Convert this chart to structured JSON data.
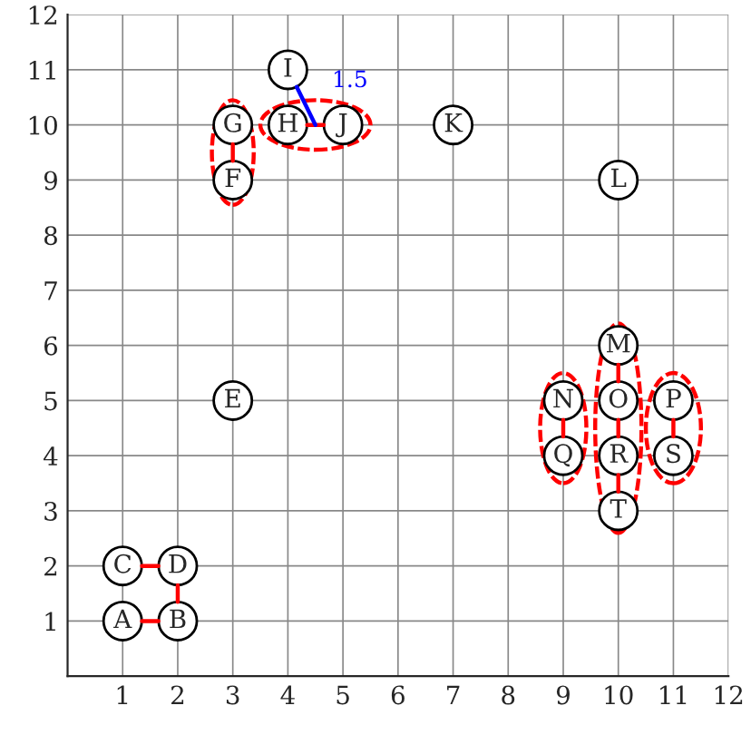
{
  "chart_data": {
    "type": "scatter",
    "xlim": [
      0,
      12
    ],
    "ylim": [
      0,
      12
    ],
    "xticks": [
      1,
      2,
      3,
      4,
      5,
      6,
      7,
      8,
      9,
      10,
      11,
      12
    ],
    "yticks": [
      1,
      2,
      3,
      4,
      5,
      6,
      7,
      8,
      9,
      10,
      11,
      12
    ],
    "grid": true,
    "legend": false,
    "series": [
      {
        "type": "line",
        "color": "#ff0000",
        "line_style": "solid",
        "x": [
          1.35,
          1.65
        ],
        "values": [
          1,
          1
        ]
      },
      {
        "type": "line",
        "color": "#ff0000",
        "line_style": "solid",
        "x": [
          1.35,
          1.65
        ],
        "values": [
          2,
          2
        ]
      },
      {
        "type": "line",
        "color": "#ff0000",
        "line_style": "solid",
        "x": [
          2,
          2
        ],
        "values": [
          1.35,
          1.65
        ]
      },
      {
        "type": "line",
        "color": "#ff0000",
        "line_style": "solid",
        "x": [
          3,
          3
        ],
        "values": [
          9.35,
          9.65
        ]
      },
      {
        "type": "line",
        "color": "#ff0000",
        "line_style": "solid",
        "x": [
          4.35,
          4.65
        ],
        "values": [
          10,
          10
        ]
      },
      {
        "type": "line",
        "color": "#ff0000",
        "line_style": "solid",
        "x": [
          10,
          10
        ],
        "values": [
          5.35,
          5.65
        ]
      },
      {
        "type": "line",
        "color": "#ff0000",
        "line_style": "solid",
        "x": [
          10,
          10
        ],
        "values": [
          4.35,
          4.65
        ]
      },
      {
        "type": "line",
        "color": "#ff0000",
        "line_style": "solid",
        "x": [
          10,
          10
        ],
        "values": [
          3.35,
          3.65
        ]
      },
      {
        "type": "line",
        "color": "#ff0000",
        "line_style": "solid",
        "x": [
          9,
          9
        ],
        "values": [
          4.35,
          4.65
        ]
      },
      {
        "type": "line",
        "color": "#ff0000",
        "line_style": "solid",
        "x": [
          11,
          11
        ],
        "values": [
          4.35,
          4.65
        ]
      },
      {
        "type": "line",
        "color": "#0000ff",
        "line_style": "solid",
        "x": [
          4.16,
          4.5
        ],
        "values": [
          10.69,
          10
        ]
      },
      {
        "color": "#000000",
        "marker": "circle",
        "x": [
          1,
          2,
          1,
          2,
          3,
          3,
          3,
          4,
          4,
          5,
          7,
          10,
          10,
          9,
          10,
          11,
          9,
          10,
          11,
          10
        ],
        "values": [
          1,
          1,
          2,
          2,
          5,
          9,
          10,
          10,
          11,
          10,
          10,
          9,
          6,
          5,
          5,
          5,
          4,
          4,
          4,
          3
        ]
      }
    ],
    "annotations": [
      {
        "text": "A",
        "x": 1,
        "y": 1
      },
      {
        "text": "B",
        "x": 2,
        "y": 1
      },
      {
        "text": "C",
        "x": 1,
        "y": 2
      },
      {
        "text": "D",
        "x": 2,
        "y": 2
      },
      {
        "text": "E",
        "x": 3,
        "y": 5
      },
      {
        "text": "F",
        "x": 3,
        "y": 9
      },
      {
        "text": "G",
        "x": 3,
        "y": 10
      },
      {
        "text": "H",
        "x": 4,
        "y": 10
      },
      {
        "text": "I",
        "x": 4,
        "y": 11
      },
      {
        "text": "J",
        "x": 5,
        "y": 10
      },
      {
        "text": "K",
        "x": 7,
        "y": 10
      },
      {
        "text": "L",
        "x": 10,
        "y": 9
      },
      {
        "text": "M",
        "x": 10,
        "y": 6
      },
      {
        "text": "N",
        "x": 9,
        "y": 5
      },
      {
        "text": "O",
        "x": 10,
        "y": 5
      },
      {
        "text": "P",
        "x": 11,
        "y": 5
      },
      {
        "text": "Q",
        "x": 9,
        "y": 4
      },
      {
        "text": "R",
        "x": 10,
        "y": 4
      },
      {
        "text": "S",
        "x": 11,
        "y": 4
      },
      {
        "text": "T",
        "x": 10,
        "y": 3
      },
      "1.5"
    ]
  }
}
